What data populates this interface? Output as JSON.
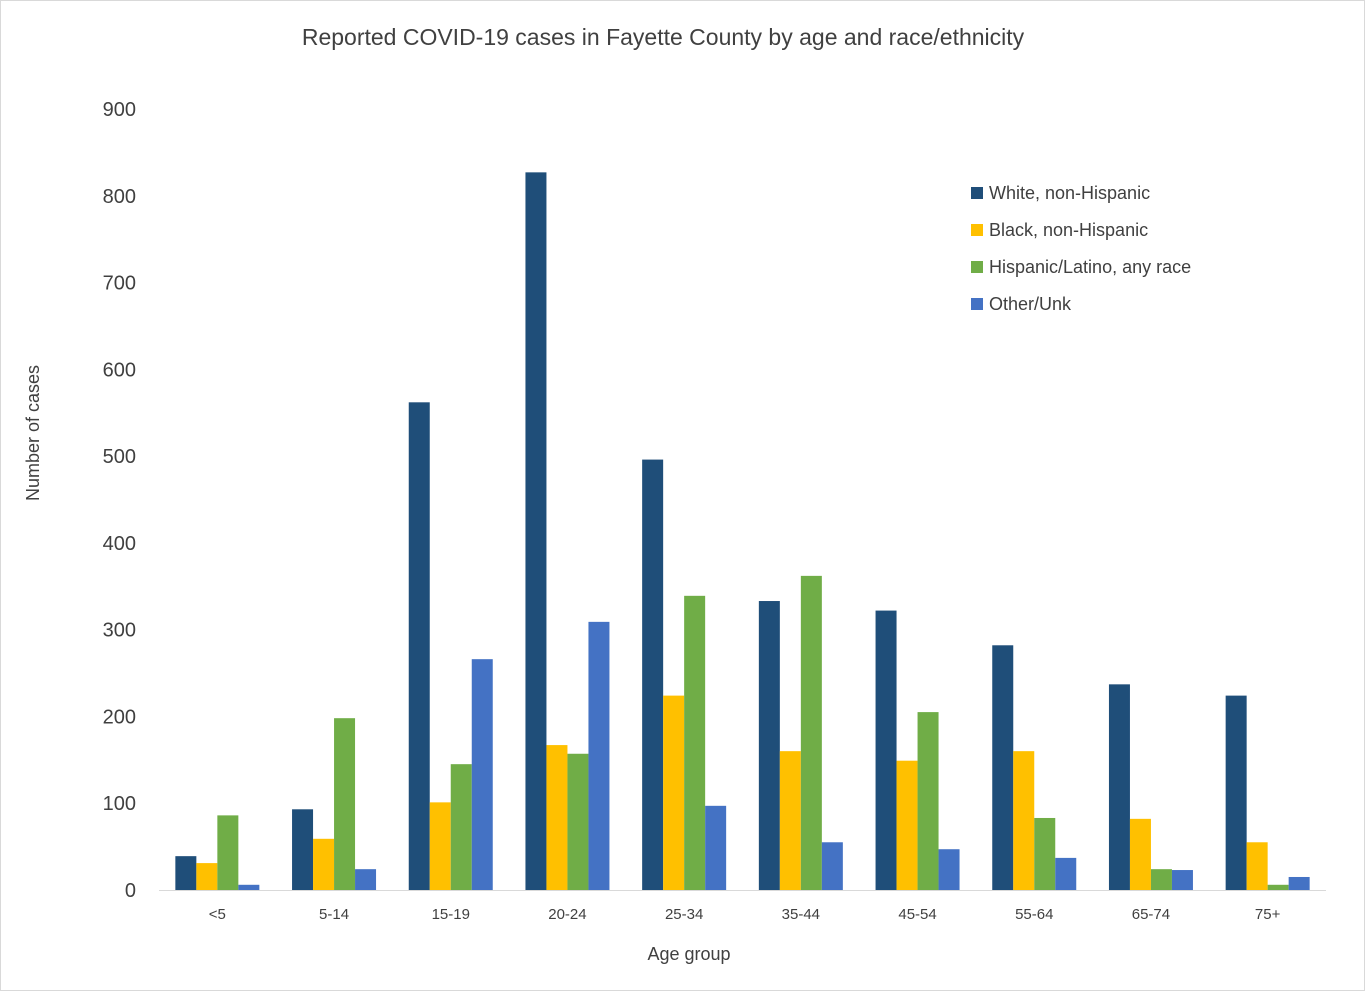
{
  "chart_data": {
    "type": "bar",
    "title": "Reported COVID-19 cases in Fayette County by age and race/ethnicity",
    "xlabel": "Age group",
    "ylabel": "Number of cases",
    "ylim": [
      0,
      900
    ],
    "yticks": [
      0,
      100,
      200,
      300,
      400,
      500,
      600,
      700,
      800,
      900
    ],
    "grid": false,
    "legend_position": "top-right",
    "categories": [
      "<5",
      "5-14",
      "15-19",
      "20-24",
      "25-34",
      "35-44",
      "45-54",
      "55-64",
      "65-74",
      "75+"
    ],
    "series": [
      {
        "name": "White, non-Hispanic",
        "color": "#1f4e79",
        "values": [
          39,
          93,
          562,
          827,
          496,
          333,
          322,
          282,
          237,
          224
        ]
      },
      {
        "name": "Black, non-Hispanic",
        "color": "#ffc000",
        "values": [
          31,
          59,
          101,
          167,
          224,
          160,
          149,
          160,
          82,
          55
        ]
      },
      {
        "name": "Hispanic/Latino, any race",
        "color": "#70ad47",
        "values": [
          86,
          198,
          145,
          157,
          339,
          362,
          205,
          83,
          24,
          6
        ]
      },
      {
        "name": "Other/Unk",
        "color": "#4472c4",
        "values": [
          6,
          24,
          266,
          309,
          97,
          55,
          47,
          37,
          23,
          15
        ]
      }
    ]
  }
}
